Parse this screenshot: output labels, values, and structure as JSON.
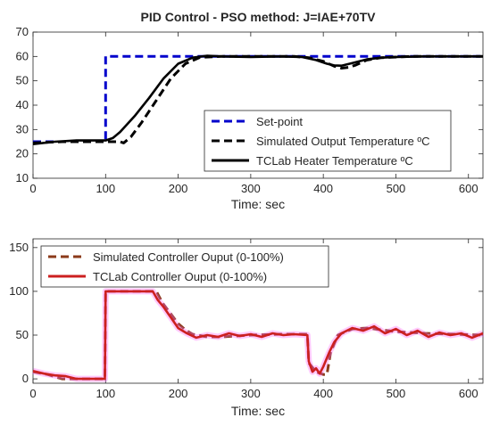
{
  "chart_data": [
    {
      "type": "line",
      "title": "PID Control - PSO method: J=IAE+70TV",
      "xlabel": "Time: sec",
      "ylabel": "",
      "xlim": [
        0,
        620
      ],
      "ylim": [
        10,
        70
      ],
      "xticks": [
        "0",
        "100",
        "200",
        "300",
        "400",
        "500",
        "600"
      ],
      "yticks": [
        "10",
        "20",
        "30",
        "40",
        "50",
        "60",
        "70"
      ],
      "grid": false,
      "legend_position": "bottom-right",
      "series": [
        {
          "name": "Set-point",
          "color": "#0000cc",
          "style": "dashed",
          "x": [
            0,
            100,
            100,
            620
          ],
          "y": [
            25,
            25,
            60,
            60
          ]
        },
        {
          "name": "Simulated Output Temperature ºC",
          "color": "#000000",
          "style": "dashed",
          "x": [
            0,
            40,
            100,
            120,
            125,
            135,
            150,
            170,
            190,
            210,
            230,
            260,
            300,
            360,
            380,
            400,
            415,
            425,
            435,
            445,
            460,
            480,
            520,
            620
          ],
          "y": [
            24.5,
            25,
            25,
            25,
            24.5,
            27,
            33,
            42,
            51,
            57,
            59.6,
            60,
            60,
            60,
            59.5,
            58,
            56,
            55.2,
            55.5,
            56.5,
            58.5,
            59.5,
            60,
            60
          ]
        },
        {
          "name": "TCLab Heater Temperature ºC",
          "color": "#000000",
          "style": "solid",
          "x": [
            0,
            30,
            60,
            100,
            110,
            120,
            140,
            160,
            180,
            200,
            220,
            240,
            260,
            300,
            340,
            370,
            390,
            405,
            415,
            425,
            440,
            460,
            480,
            500,
            540,
            580,
            620
          ],
          "y": [
            24,
            25,
            25.5,
            25.5,
            26.5,
            29,
            35.5,
            43,
            51,
            57,
            59.5,
            60.3,
            60,
            59.8,
            60,
            59.8,
            58.5,
            57,
            56.3,
            56.2,
            57.3,
            58.8,
            59.5,
            59.8,
            60,
            60,
            60
          ]
        }
      ]
    },
    {
      "type": "line",
      "title": "",
      "xlabel": "Time: sec",
      "ylabel": "",
      "xlim": [
        0,
        620
      ],
      "ylim": [
        -5,
        160
      ],
      "xticks": [
        "0",
        "100",
        "200",
        "300",
        "400",
        "500",
        "600"
      ],
      "yticks": [
        "0",
        "50",
        "100",
        "150"
      ],
      "grid": false,
      "legend_position": "top-left",
      "series": [
        {
          "name": "Simulated Controller Ouput (0-100%)",
          "color": "#8b3a1a",
          "style": "dashed",
          "x": [
            0,
            20,
            40,
            60,
            80,
            99,
            100,
            120,
            150,
            170,
            175,
            180,
            190,
            200,
            210,
            220,
            240,
            260,
            300,
            340,
            378,
            380,
            390,
            400,
            405,
            410,
            420,
            440,
            460,
            500,
            540,
            580,
            620
          ],
          "y": [
            8,
            5,
            0,
            0,
            0,
            0,
            100,
            100,
            100,
            100,
            92,
            85,
            74,
            63,
            56,
            51,
            48,
            48,
            50,
            51,
            51,
            18,
            8,
            5,
            5,
            30,
            50,
            57,
            58,
            54,
            52,
            51,
            50
          ]
        },
        {
          "name": "TCLab Controller Ouput (0-100%)",
          "color": "#cc2020",
          "style": "solid",
          "x": [
            0,
            15,
            30,
            45,
            60,
            80,
            99,
            100,
            130,
            165,
            172,
            180,
            190,
            200,
            212,
            225,
            240,
            255,
            270,
            285,
            300,
            315,
            330,
            345,
            360,
            378,
            380,
            385,
            390,
            395,
            400,
            408,
            415,
            425,
            440,
            455,
            470,
            485,
            500,
            515,
            530,
            545,
            560,
            575,
            590,
            605,
            620
          ],
          "y": [
            9,
            6,
            4,
            3,
            0,
            0,
            0,
            100,
            100,
            100,
            90,
            82,
            70,
            58,
            52,
            47,
            50,
            48,
            52,
            49,
            51,
            48,
            52,
            50,
            51,
            50,
            20,
            8,
            12,
            6,
            14,
            30,
            42,
            52,
            58,
            55,
            60,
            52,
            57,
            50,
            55,
            48,
            53,
            50,
            52,
            47,
            52
          ]
        }
      ]
    }
  ]
}
